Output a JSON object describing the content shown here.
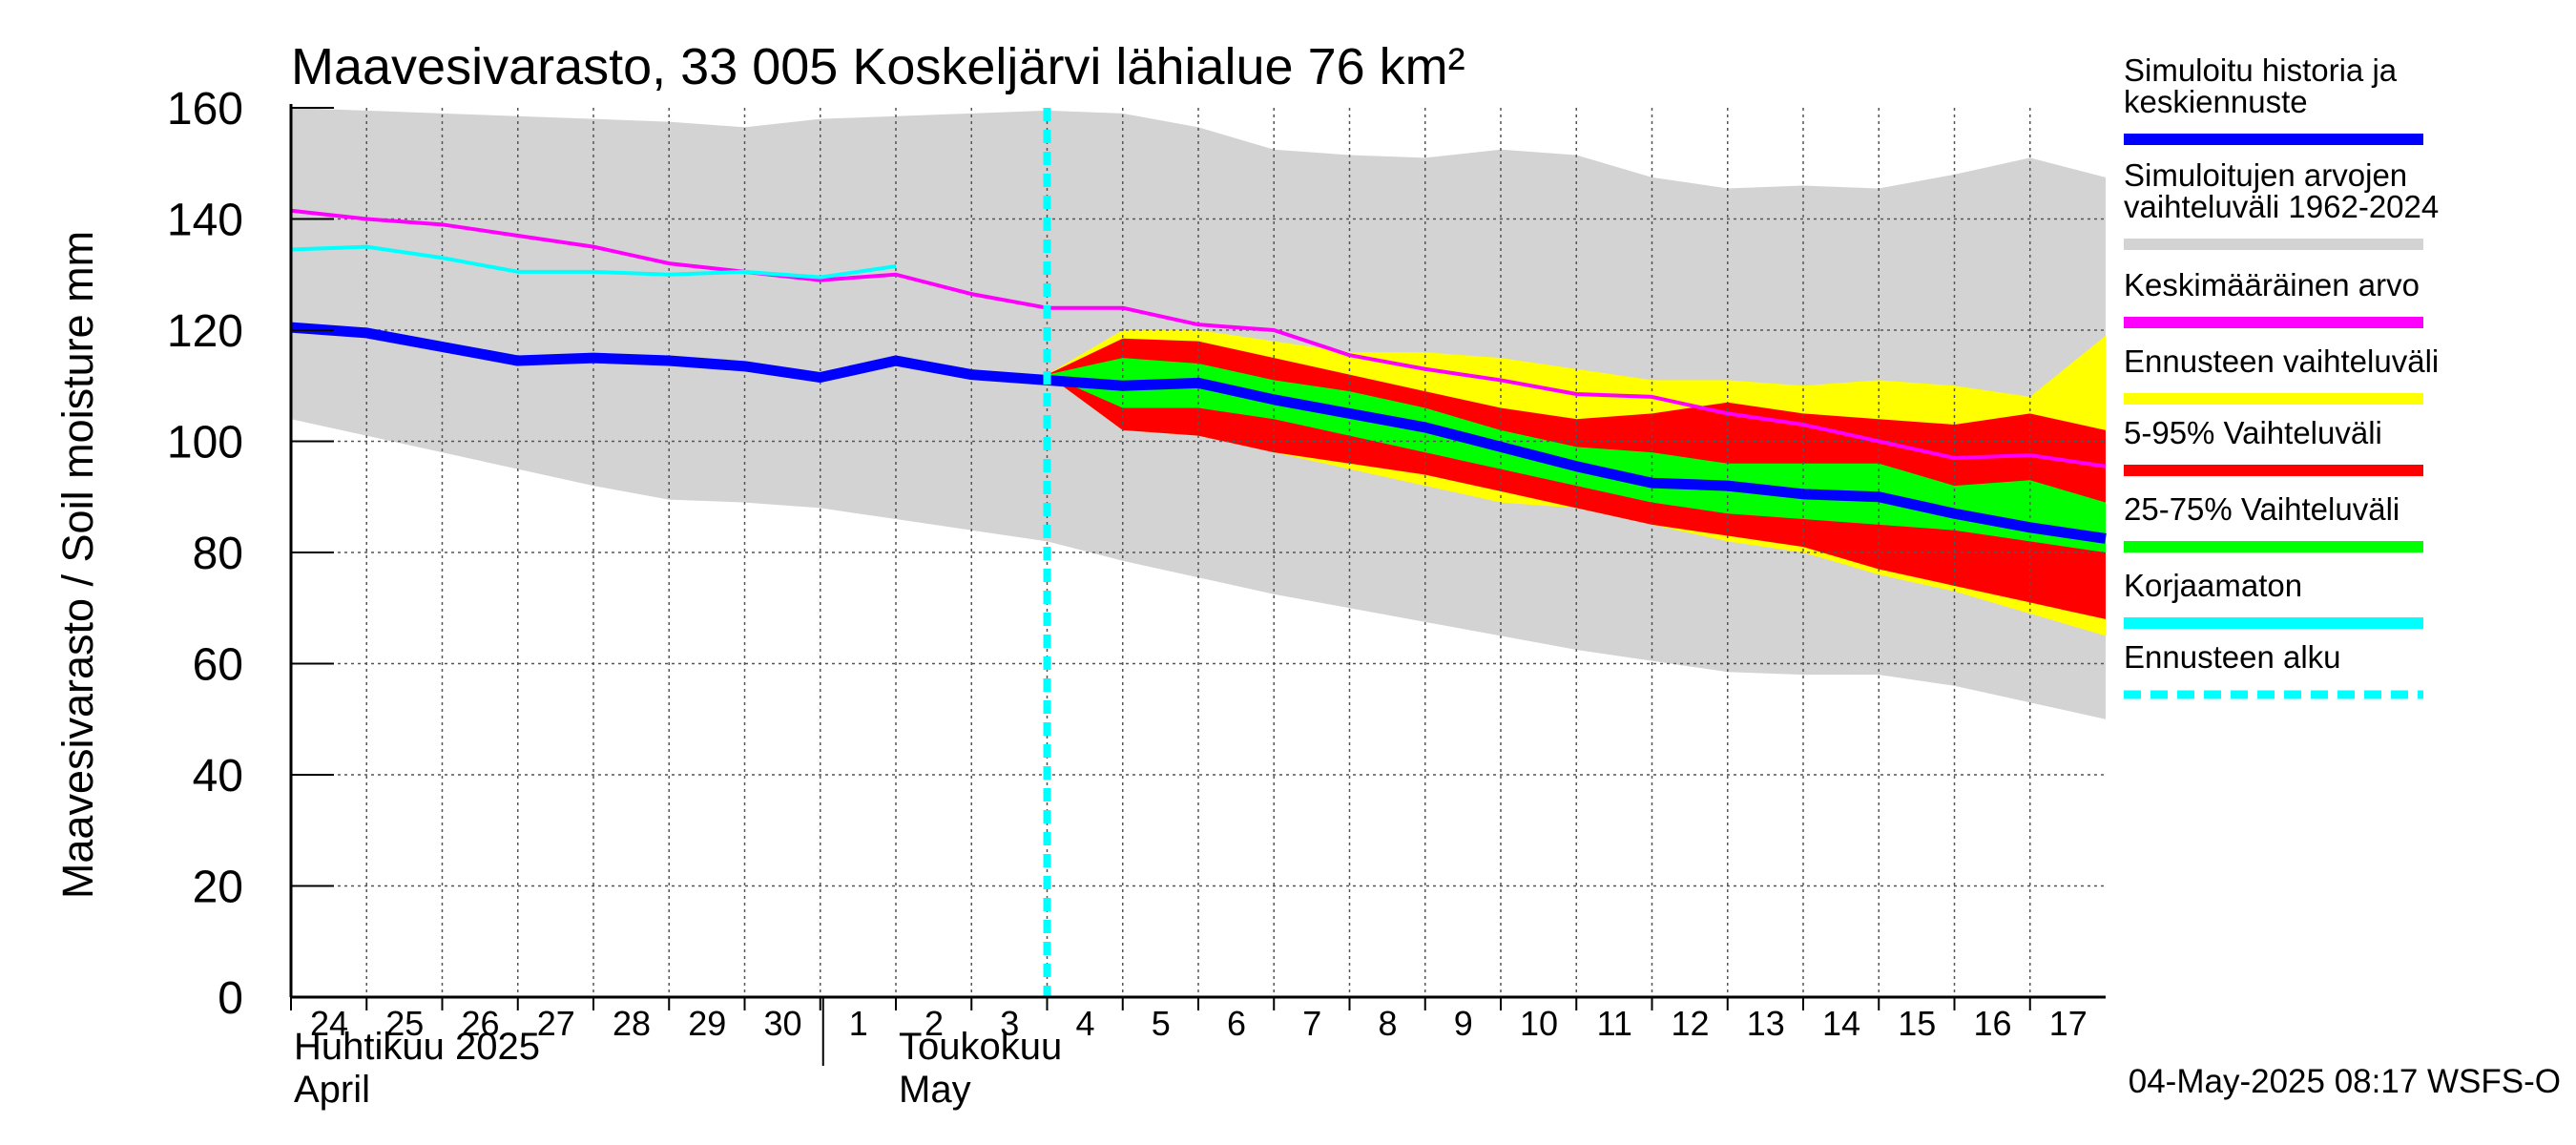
{
  "chart_data": {
    "type": "area",
    "title": "Maavesivarasto, 33 005 Koskeljärvi lähialue 76 km²",
    "ylabel": "Maavesivarasto / Soil moisture   mm",
    "ylim": [
      0,
      160
    ],
    "yticks": [
      "0",
      "20",
      "40",
      "60",
      "80",
      "100",
      "120",
      "140",
      "160"
    ],
    "xlim": [
      0,
      24
    ],
    "xticks": [
      {
        "x": 0,
        "label": "24"
      },
      {
        "x": 1,
        "label": "25"
      },
      {
        "x": 2,
        "label": "26"
      },
      {
        "x": 3,
        "label": "27"
      },
      {
        "x": 4,
        "label": "28"
      },
      {
        "x": 5,
        "label": "29"
      },
      {
        "x": 6,
        "label": "30"
      },
      {
        "x": 7,
        "label": "1"
      },
      {
        "x": 8,
        "label": "2"
      },
      {
        "x": 9,
        "label": "3"
      },
      {
        "x": 10,
        "label": "4"
      },
      {
        "x": 11,
        "label": "5"
      },
      {
        "x": 12,
        "label": "6"
      },
      {
        "x": 13,
        "label": "7"
      },
      {
        "x": 14,
        "label": "8"
      },
      {
        "x": 15,
        "label": "9"
      },
      {
        "x": 16,
        "label": "10"
      },
      {
        "x": 17,
        "label": "11"
      },
      {
        "x": 18,
        "label": "12"
      },
      {
        "x": 19,
        "label": "13"
      },
      {
        "x": 20,
        "label": "14"
      },
      {
        "x": 21,
        "label": "15"
      },
      {
        "x": 22,
        "label": "16"
      },
      {
        "x": 23,
        "label": "17"
      }
    ],
    "month_labels": [
      {
        "x": 0,
        "line1": "Huhtikuu  2025",
        "line2": "April"
      },
      {
        "x": 8,
        "line1": "Toukokuu",
        "line2": "May"
      }
    ],
    "month_divider_x": 7,
    "forecast_start_x": 10,
    "grid": true,
    "series": {
      "history_range_upper": {
        "x": [
          0,
          1,
          2,
          3,
          4,
          5,
          6,
          7,
          8,
          9,
          10,
          11,
          12,
          13,
          14,
          15,
          16,
          17,
          18,
          19,
          20,
          21,
          22,
          23,
          24
        ],
        "values": [
          160,
          159.5,
          159,
          158.5,
          158,
          157.5,
          156.5,
          158,
          158.5,
          159,
          159.5,
          159,
          156.5,
          152.5,
          151.5,
          151,
          152.5,
          151.5,
          147.5,
          145.5,
          146,
          145.5,
          148,
          151,
          147.5
        ]
      },
      "history_range_lower": {
        "x": [
          0,
          1,
          2,
          3,
          4,
          5,
          6,
          7,
          8,
          9,
          10,
          11,
          12,
          13,
          14,
          15,
          16,
          17,
          18,
          19,
          20,
          21,
          22,
          23,
          24
        ],
        "values": [
          104,
          101,
          98,
          95,
          92,
          89.5,
          89,
          88,
          86,
          84,
          82,
          78.5,
          75.5,
          72.5,
          70,
          67.5,
          65,
          62.5,
          60.5,
          58.5,
          58,
          58,
          56,
          53,
          50
        ]
      },
      "forecast_range_upper": {
        "x": [
          10,
          11,
          12,
          13,
          14,
          15,
          16,
          17,
          18,
          19,
          20,
          21,
          22,
          23,
          24
        ],
        "values": [
          112,
          120,
          120,
          118,
          116,
          116,
          115,
          113,
          111,
          111,
          110,
          111,
          110,
          108,
          119
        ]
      },
      "forecast_range_lower": {
        "x": [
          10,
          11,
          12,
          13,
          14,
          15,
          16,
          17,
          18,
          19,
          20,
          21,
          22,
          23,
          24
        ],
        "values": [
          112,
          102,
          101,
          98,
          95,
          92,
          89,
          88,
          85,
          82,
          80,
          76,
          73,
          69,
          65
        ]
      },
      "p5_95_upper": {
        "x": [
          10,
          11,
          12,
          13,
          14,
          15,
          16,
          17,
          18,
          19,
          20,
          21,
          22,
          23,
          24
        ],
        "values": [
          112,
          118.5,
          118,
          115,
          112,
          109,
          106,
          104,
          105,
          107,
          105,
          104,
          103,
          105,
          102
        ]
      },
      "p5_95_lower": {
        "x": [
          10,
          11,
          12,
          13,
          14,
          15,
          16,
          17,
          18,
          19,
          20,
          21,
          22,
          23,
          24
        ],
        "values": [
          112,
          102,
          101,
          98,
          96,
          94,
          91,
          88,
          85,
          83,
          81,
          77,
          74,
          71,
          68
        ]
      },
      "p25_75_upper": {
        "x": [
          10,
          11,
          12,
          13,
          14,
          15,
          16,
          17,
          18,
          19,
          20,
          21,
          22,
          23,
          24
        ],
        "values": [
          112,
          115,
          114,
          111,
          109,
          106,
          102,
          99,
          98,
          96,
          96,
          96,
          92,
          93,
          89
        ]
      },
      "p25_75_lower": {
        "x": [
          10,
          11,
          12,
          13,
          14,
          15,
          16,
          17,
          18,
          19,
          20,
          21,
          22,
          23,
          24
        ],
        "values": [
          112,
          106,
          106,
          104,
          101,
          98,
          95,
          92,
          89,
          87,
          86,
          85,
          84,
          82,
          80
        ]
      },
      "simulated_history_and_median_forecast": {
        "x": [
          0,
          1,
          2,
          3,
          4,
          5,
          6,
          7,
          8,
          9,
          10,
          11,
          12,
          13,
          14,
          15,
          16,
          17,
          18,
          19,
          20,
          21,
          22,
          23,
          24
        ],
        "values": [
          120.5,
          119.5,
          117,
          114.5,
          115,
          114.5,
          113.5,
          111.5,
          114.5,
          112,
          111,
          110,
          110.5,
          107.5,
          105,
          102.5,
          99,
          95.5,
          92.5,
          92,
          90.5,
          90,
          87,
          84.5,
          82.5
        ]
      },
      "long_term_mean": {
        "x": [
          0,
          1,
          2,
          3,
          4,
          5,
          6,
          7,
          8,
          9,
          10,
          11,
          12,
          13,
          14,
          15,
          16,
          17,
          18,
          19,
          20,
          21,
          22,
          23,
          24
        ],
        "values": [
          141.5,
          140,
          139,
          137,
          135,
          132,
          130.5,
          129,
          130,
          126.5,
          124,
          124,
          121,
          120,
          115.5,
          113,
          111,
          108.5,
          108,
          105,
          103,
          100,
          97,
          97.5,
          95.5
        ]
      },
      "uncorrected": {
        "x": [
          0,
          1,
          2,
          3,
          4,
          5,
          6,
          7,
          8
        ],
        "values": [
          134.5,
          135,
          133,
          130.5,
          130.5,
          130,
          130.5,
          129.5,
          131.5
        ]
      }
    },
    "legend": [
      {
        "label_lines": [
          "Simuloitu historia ja",
          "keskiennuste"
        ],
        "color": "#0000ff",
        "style": "solid"
      },
      {
        "label_lines": [
          "Simuloitujen arvojen",
          "vaihteluväli 1962-2024"
        ],
        "color": "#d3d3d3",
        "style": "solid"
      },
      {
        "label_lines": [
          "Keskimääräinen arvo"
        ],
        "color": "#ff00ff",
        "style": "solid"
      },
      {
        "label_lines": [
          "Ennusteen vaihteluväli"
        ],
        "color": "#ffff00",
        "style": "solid"
      },
      {
        "label_lines": [
          "5-95% Vaihteluväli"
        ],
        "color": "#ff0000",
        "style": "solid"
      },
      {
        "label_lines": [
          "25-75% Vaihteluväli"
        ],
        "color": "#00ff00",
        "style": "solid"
      },
      {
        "label_lines": [
          "Korjaamaton"
        ],
        "color": "#00ffff",
        "style": "solid"
      },
      {
        "label_lines": [
          "Ennusteen alku"
        ],
        "color": "#00ffff",
        "style": "dashed"
      }
    ],
    "legend_position": "right",
    "timestamp": "04-May-2025 08:17 WSFS-O"
  },
  "colors": {
    "history_range": "#d3d3d3",
    "forecast_range": "#ffff00",
    "p5_95": "#ff0000",
    "p25_75": "#00ff00",
    "median": "#0000ff",
    "mean": "#ff00ff",
    "uncorrected": "#00ffff",
    "forecast_start": "#00ffff",
    "grid": "#555555"
  }
}
